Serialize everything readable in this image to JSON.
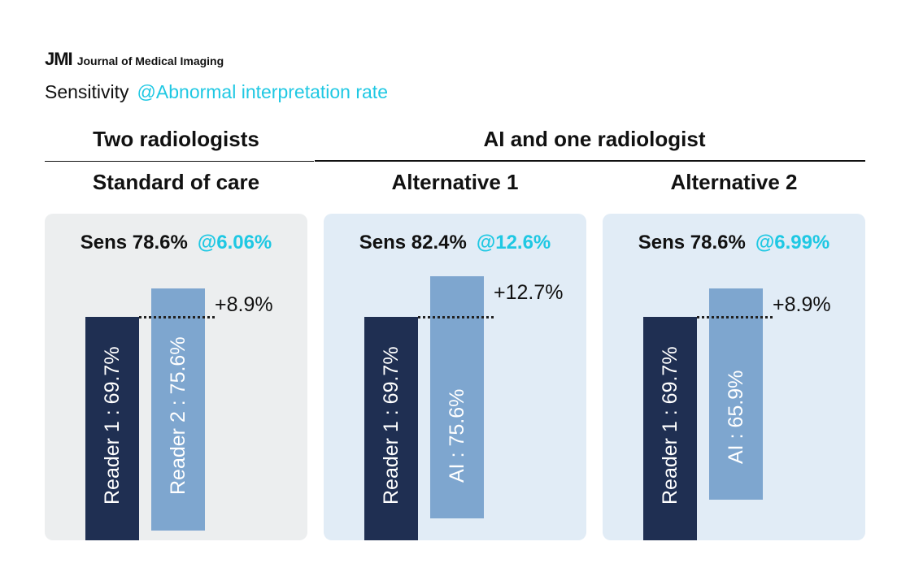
{
  "brand": {
    "mark": "JMI",
    "name": "Journal of Medical Imaging"
  },
  "subtitle": {
    "metric": "Sensitivity",
    "rate_label": "@Abnormal interpretation rate"
  },
  "colors": {
    "accent": "#1fc8e3",
    "dark_bar": "#1f2f52",
    "light_bar": "#7ea6cf",
    "panel_gray": "#eceeef",
    "panel_blue": "#e1ecf6"
  },
  "groups": {
    "left": "Two radiologists",
    "right": "AI and one radiologist"
  },
  "chart_data": {
    "type": "bar",
    "title": "Sensitivity",
    "subtitle": "@Abnormal interpretation rate",
    "ylim": [
      0,
      100
    ],
    "panels": [
      {
        "name": "Standard of care",
        "sens_label": "Sens 78.6%",
        "rate_label": "@6.06%",
        "sensitivity": 78.6,
        "interpretation_rate": 6.06,
        "bars": [
          {
            "label": "Reader 1 : 69.7%",
            "value": 69.7
          },
          {
            "label": "Reader 2 : 75.6%",
            "value": 75.6
          }
        ],
        "delta_label": "+8.9%",
        "delta": 8.9
      },
      {
        "name": "Alternative 1",
        "sens_label": "Sens 82.4%",
        "rate_label": "@12.6%",
        "sensitivity": 82.4,
        "interpretation_rate": 12.6,
        "bars": [
          {
            "label": "Reader 1 : 69.7%",
            "value": 69.7
          },
          {
            "label": "AI : 75.6%",
            "value": 75.6
          }
        ],
        "delta_label": "+12.7%",
        "delta": 12.7
      },
      {
        "name": "Alternative 2",
        "sens_label": "Sens 78.6%",
        "rate_label": "@6.99%",
        "sensitivity": 78.6,
        "interpretation_rate": 6.99,
        "bars": [
          {
            "label": "Reader 1 : 69.7%",
            "value": 69.7
          },
          {
            "label": "AI : 65.9%",
            "value": 65.9
          }
        ],
        "delta_label": "+8.9%",
        "delta": 8.9
      }
    ]
  }
}
